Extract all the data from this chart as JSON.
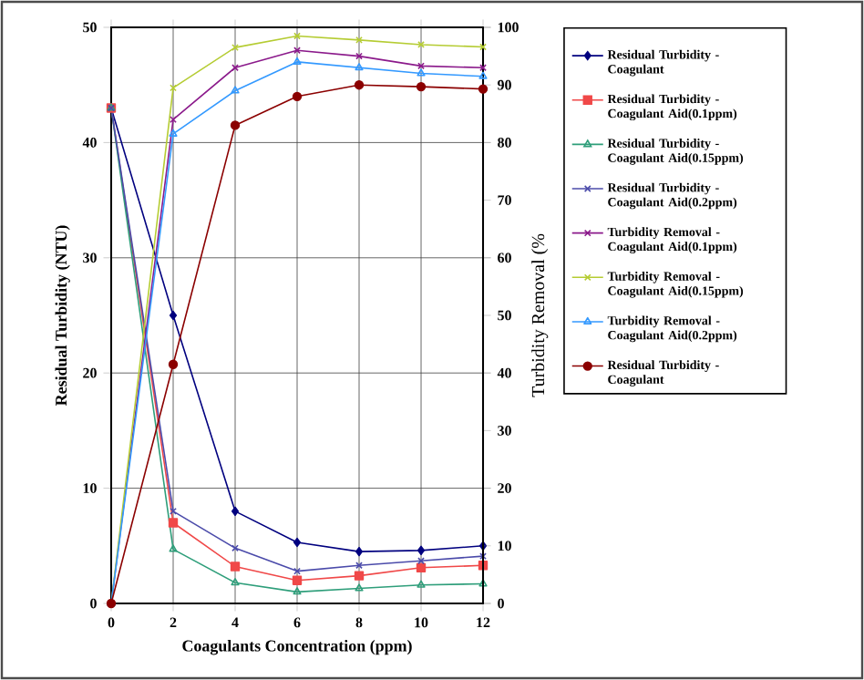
{
  "chart_data": {
    "type": "line",
    "xlabel": "Coagulants Concentration (ppm)",
    "ylabel": "Residual Turbidity (NTU)",
    "y2label": "Turbidity Removal (%",
    "x": [
      0,
      2,
      4,
      6,
      8,
      10,
      12
    ],
    "series": [
      {
        "name": "Residual Turbidity - Coagulant",
        "color": "#00007f",
        "marker": "diamond",
        "values": [
          43,
          25,
          8,
          5.3,
          4.5,
          4.6,
          5.0
        ]
      },
      {
        "name": "Residual Turbidity - Coagulant Aid(0.1ppm)",
        "color": "#f04848",
        "marker": "square",
        "values": [
          43,
          7,
          3.2,
          2,
          2.4,
          3.1,
          3.3
        ]
      },
      {
        "name": "Residual Turbidity - Coagulant Aid(0.15ppm)",
        "color": "#2e9e7a",
        "marker": "triangle",
        "values": [
          43,
          4.7,
          1.8,
          1,
          1.3,
          1.6,
          1.7
        ]
      },
      {
        "name": "Residual Turbidity - Coagulant Aid(0.2ppm)",
        "color": "#4b4baa",
        "marker": "cross",
        "values": [
          43,
          8,
          4.8,
          2.8,
          3.3,
          3.7,
          4.1
        ]
      },
      {
        "name": "Turbidity Removal - Coagulant Aid(0.1ppm)",
        "color": "#8b1a8b",
        "marker": "cross",
        "axis": "y2",
        "values": [
          0,
          84,
          93,
          96,
          95,
          93.3,
          93
        ]
      },
      {
        "name": "Turbidity Removal - Coagulant Aid(0.15ppm)",
        "color": "#b5cc33",
        "marker": "cross",
        "axis": "y2",
        "values": [
          0,
          89.5,
          96.5,
          98.5,
          97.8,
          97,
          96.6
        ]
      },
      {
        "name": "Turbidity Removal - Coagulant Aid(0.2ppm)",
        "color": "#3399ff",
        "marker": "triangle",
        "axis": "y2",
        "values": [
          0,
          81.5,
          89,
          94,
          93,
          92,
          91.5
        ]
      },
      {
        "name": "Residual Turbidity - Coagulant",
        "color": "#8b0000",
        "marker": "circle",
        "axis": "y2",
        "values": [
          0,
          41.5,
          83,
          88,
          90,
          89.7,
          89.3
        ]
      }
    ],
    "xlim": [
      0,
      12
    ],
    "xticks": [
      0,
      2,
      4,
      6,
      8,
      10,
      12
    ],
    "ylim": [
      0,
      50
    ],
    "yticks": [
      0,
      10,
      20,
      30,
      40,
      50
    ],
    "y2lim": [
      0,
      100
    ],
    "y2ticks": [
      0,
      10,
      20,
      30,
      40,
      50,
      60,
      70,
      80,
      90,
      100
    ],
    "grid": true,
    "legend": "right",
    "line_style": "solid"
  }
}
